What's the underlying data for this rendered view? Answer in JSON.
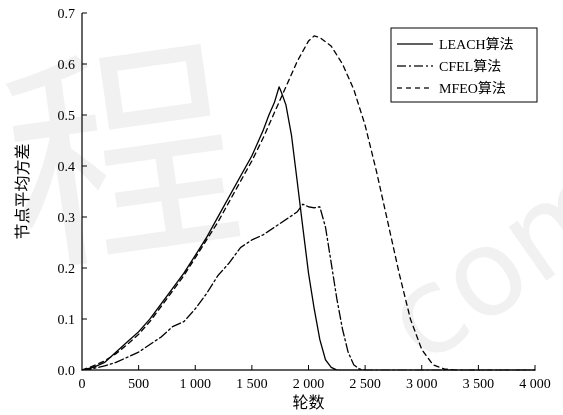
{
  "chart_data": {
    "type": "line",
    "title": "",
    "xlabel": "轮数",
    "ylabel": "节点平均方差",
    "xlim": [
      0,
      4000
    ],
    "ylim": [
      0,
      0.7
    ],
    "xticks": [
      0,
      500,
      1000,
      1500,
      2000,
      2500,
      3000,
      3500,
      4000
    ],
    "xtick_labels": [
      "0",
      "500",
      "1 000",
      "1 500",
      "2 000",
      "2 500",
      "3 000",
      "3 500",
      "4 000"
    ],
    "yticks": [
      0,
      0.1,
      0.2,
      0.3,
      0.4,
      0.5,
      0.6,
      0.7
    ],
    "ytick_labels": [
      "0.0",
      "0.1",
      "0.2",
      "0.3",
      "0.4",
      "0.5",
      "0.6",
      "0.7"
    ],
    "grid": false,
    "legend_position": "top-right",
    "series": [
      {
        "name": "LEACH算法",
        "line_style": "solid",
        "color": "#000000",
        "x": [
          0,
          100,
          200,
          300,
          400,
          500,
          600,
          700,
          800,
          900,
          1000,
          1100,
          1200,
          1300,
          1400,
          1500,
          1600,
          1650,
          1700,
          1720,
          1740,
          1760,
          1800,
          1850,
          1900,
          1950,
          2000,
          2050,
          2100,
          2150,
          2200,
          2250,
          2300,
          2400,
          2500,
          3000,
          4000
        ],
        "y": [
          0,
          0.005,
          0.015,
          0.035,
          0.055,
          0.075,
          0.1,
          0.13,
          0.16,
          0.19,
          0.225,
          0.26,
          0.3,
          0.34,
          0.38,
          0.42,
          0.47,
          0.5,
          0.525,
          0.54,
          0.555,
          0.545,
          0.52,
          0.46,
          0.37,
          0.28,
          0.19,
          0.12,
          0.06,
          0.02,
          0.005,
          0,
          0,
          0,
          0,
          0,
          0
        ]
      },
      {
        "name": "CFEL算法",
        "line_style": "dash-dot",
        "color": "#000000",
        "x": [
          0,
          100,
          200,
          300,
          400,
          500,
          600,
          700,
          800,
          900,
          1000,
          1100,
          1200,
          1300,
          1400,
          1500,
          1600,
          1700,
          1800,
          1900,
          1950,
          2000,
          2050,
          2100,
          2150,
          2200,
          2250,
          2300,
          2350,
          2400,
          2450,
          2500,
          3000,
          4000
        ],
        "y": [
          0,
          0.003,
          0.008,
          0.015,
          0.025,
          0.035,
          0.05,
          0.065,
          0.085,
          0.095,
          0.12,
          0.15,
          0.185,
          0.21,
          0.24,
          0.255,
          0.265,
          0.28,
          0.295,
          0.31,
          0.325,
          0.32,
          0.318,
          0.32,
          0.28,
          0.21,
          0.14,
          0.08,
          0.035,
          0.01,
          0.002,
          0,
          0,
          0
        ]
      },
      {
        "name": "MFEO算法",
        "line_style": "dashed",
        "color": "#000000",
        "x": [
          0,
          100,
          200,
          300,
          400,
          500,
          600,
          700,
          800,
          900,
          1000,
          1100,
          1200,
          1300,
          1400,
          1500,
          1600,
          1700,
          1800,
          1900,
          2000,
          2050,
          2100,
          2200,
          2300,
          2400,
          2500,
          2600,
          2700,
          2800,
          2900,
          3000,
          3100,
          3200,
          3300,
          3400,
          3500,
          4000
        ],
        "y": [
          0,
          0.008,
          0.018,
          0.032,
          0.05,
          0.07,
          0.095,
          0.125,
          0.155,
          0.185,
          0.22,
          0.255,
          0.29,
          0.33,
          0.37,
          0.41,
          0.455,
          0.505,
          0.555,
          0.605,
          0.645,
          0.655,
          0.652,
          0.635,
          0.6,
          0.55,
          0.48,
          0.39,
          0.29,
          0.19,
          0.1,
          0.04,
          0.01,
          0.002,
          0,
          0,
          0,
          0
        ]
      }
    ]
  }
}
